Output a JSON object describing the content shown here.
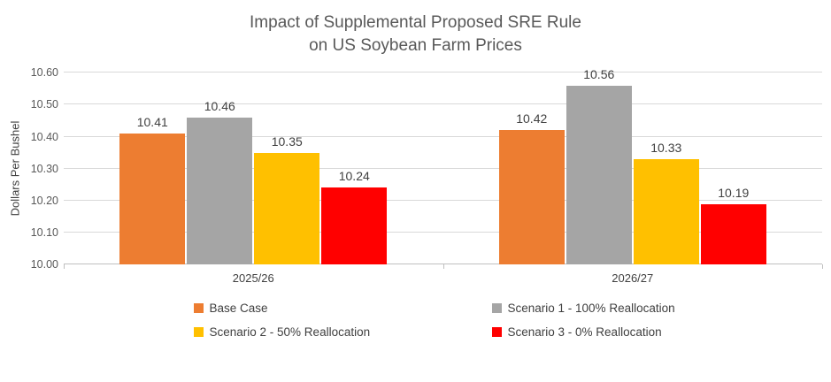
{
  "chart_data": {
    "type": "bar",
    "title": "Impact of Supplemental Proposed SRE Rule on US Soybean Farm Prices",
    "title_lines": [
      "Impact of Supplemental Proposed SRE Rule",
      "on US Soybean Farm Prices"
    ],
    "xlabel": "",
    "ylabel": "Dollars Per Bushel",
    "ylim": [
      10.0,
      10.6
    ],
    "ytick_step": 0.1,
    "grid": true,
    "legend_position": "bottom",
    "categories": [
      "2025/26",
      "2026/27"
    ],
    "series": [
      {
        "name": "Base Case",
        "color": "#ED7D31",
        "values": [
          10.41,
          10.42
        ]
      },
      {
        "name": "Scenario 1 - 100% Reallocation",
        "color": "#A5A5A5",
        "values": [
          10.46,
          10.56
        ]
      },
      {
        "name": "Scenario 2 - 50% Reallocation",
        "color": "#FFC000",
        "values": [
          10.35,
          10.33
        ]
      },
      {
        "name": "Scenario 3 - 0% Reallocation",
        "color": "#FF0000",
        "values": [
          10.24,
          10.19
        ]
      }
    ],
    "colors": {
      "gridline": "#D9D9D9",
      "axis_line": "#BFBFBF",
      "title_text": "#595959",
      "label_text": "#404040"
    }
  }
}
